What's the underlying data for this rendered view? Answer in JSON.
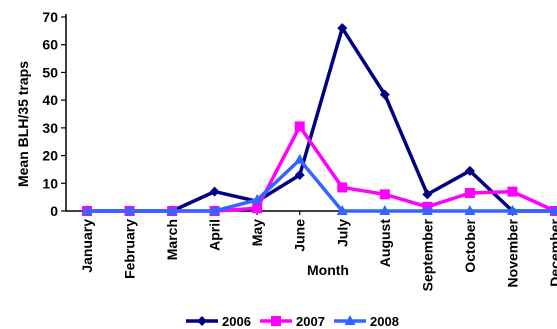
{
  "chart_data": {
    "type": "line",
    "title": "",
    "xlabel": "Month",
    "ylabel": "Mean BLH/35 traps",
    "ylim": [
      0,
      70
    ],
    "yticks": [
      0,
      10,
      20,
      30,
      40,
      50,
      60,
      70
    ],
    "categories": [
      "January",
      "February",
      "March",
      "April",
      "May",
      "June",
      "July",
      "August",
      "September",
      "October",
      "November",
      "December"
    ],
    "grid": false,
    "legend_position": "bottom",
    "series": [
      {
        "name": "2006",
        "color": "#000080",
        "marker": "diamond",
        "values": [
          0,
          0,
          0,
          7,
          3.5,
          13,
          66,
          42,
          6,
          14.5,
          0,
          0
        ]
      },
      {
        "name": "2007",
        "color": "#FF00FF",
        "marker": "square",
        "values": [
          0,
          0,
          0,
          0,
          1,
          30.5,
          8.5,
          6,
          1.5,
          6.5,
          7,
          0
        ]
      },
      {
        "name": "2008",
        "color": "#3366FF",
        "marker": "triangle",
        "values": [
          0,
          0,
          0,
          0,
          4,
          18.5,
          0,
          0,
          0,
          0,
          0,
          0
        ]
      }
    ]
  }
}
